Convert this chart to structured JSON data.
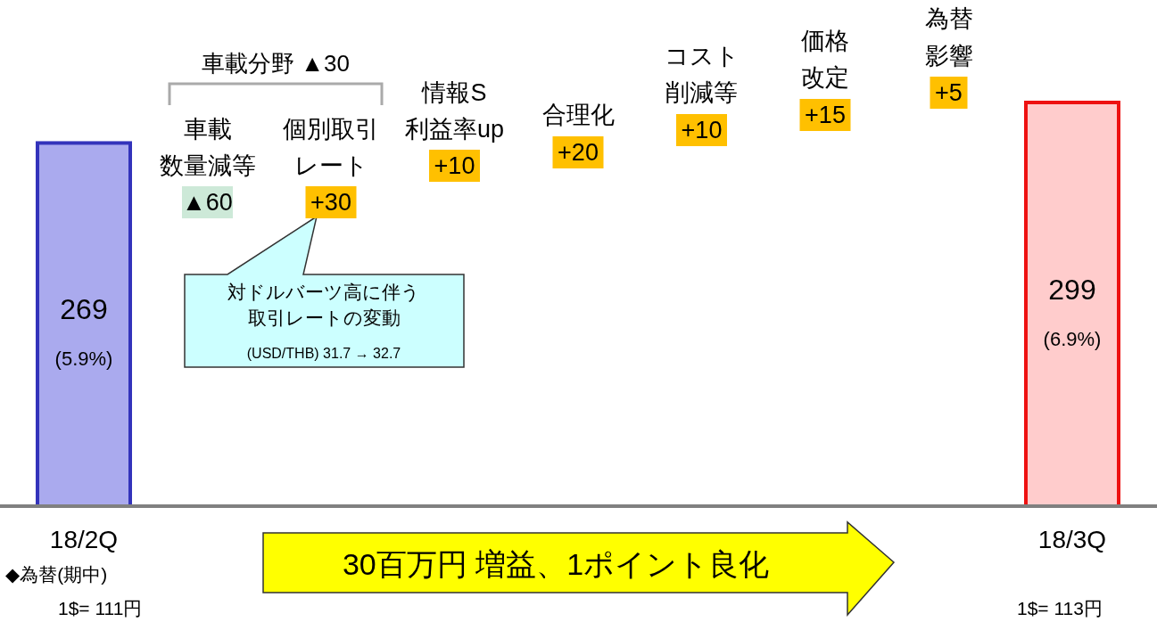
{
  "chart_data": {
    "type": "bar",
    "categories": [
      "18/2Q",
      null,
      null,
      null,
      null,
      null,
      null,
      null,
      "18/3Q"
    ],
    "values": [
      269,
      null,
      null,
      null,
      null,
      null,
      null,
      null,
      299
    ],
    "colors": [
      "#aaaaee",
      null,
      null,
      null,
      null,
      null,
      null,
      null,
      "#ffcccc"
    ],
    "value_labels": [
      "269\n(5.9%)",
      null,
      null,
      null,
      null,
      null,
      null,
      null,
      "299\n(6.9%)"
    ],
    "annotations": [
      "車載分野 ▲30",
      "車載",
      "数量減等",
      "▲60",
      "個別取引",
      "レート",
      "+30",
      "情報S",
      "利益率up",
      "+10",
      "合理化",
      "+20",
      "コスト",
      "削減等",
      "+10",
      "価格",
      "改定",
      "+15",
      "為替",
      "影響",
      "+5",
      "対ドルバーツ高に伴う",
      "取引レートの変動",
      "(USD/THB) 31.7 → 32.7",
      "30百万円 増益、1ポイント良化",
      "◆為替(期中)",
      "1$= 111円",
      "1$= 113円"
    ]
  }
}
